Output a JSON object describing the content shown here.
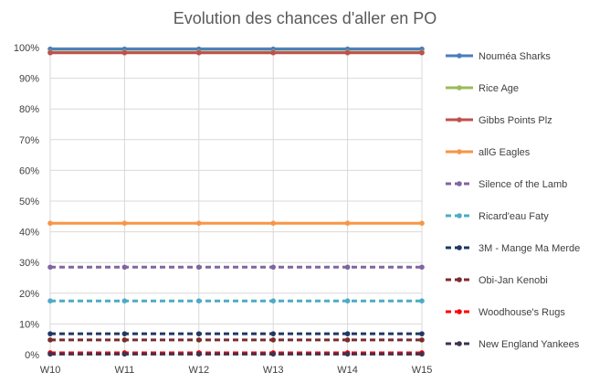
{
  "chart_data": {
    "type": "line",
    "title": "Evolution des chances d'aller en PO",
    "xlabel": "",
    "ylabel": "",
    "categories": [
      "W10",
      "W11",
      "W12",
      "W13",
      "W14",
      "W15"
    ],
    "ylim": [
      0,
      1
    ],
    "y_ticks": [
      "0%",
      "10%",
      "20%",
      "30%",
      "40%",
      "50%",
      "60%",
      "70%",
      "80%",
      "90%",
      "100%"
    ],
    "grid": true,
    "legend": "right",
    "series": [
      {
        "name": "Nouméa Sharks",
        "values": [
          0.995,
          0.995,
          0.995,
          0.995,
          0.995,
          0.995
        ],
        "color": "#4a7ebb",
        "dash": false
      },
      {
        "name": "Rice Age",
        "values": [
          0.985,
          0.985,
          0.985,
          0.985,
          0.985,
          0.985
        ],
        "color": "#9bbb59",
        "dash": false
      },
      {
        "name": "Gibbs Points Plz",
        "values": [
          0.983,
          0.983,
          0.983,
          0.983,
          0.983,
          0.983
        ],
        "color": "#c0504d",
        "dash": false
      },
      {
        "name": "allG Eagles",
        "values": [
          0.428,
          0.428,
          0.428,
          0.428,
          0.428,
          0.428
        ],
        "color": "#f79646",
        "dash": false
      },
      {
        "name": "Silence of the Lamb",
        "values": [
          0.285,
          0.285,
          0.285,
          0.285,
          0.285,
          0.285
        ],
        "color": "#8064a2",
        "dash": true
      },
      {
        "name": "Ricard'eau Faty",
        "values": [
          0.175,
          0.175,
          0.175,
          0.175,
          0.175,
          0.175
        ],
        "color": "#4bacc6",
        "dash": true
      },
      {
        "name": "3M - Mange Ma Merde",
        "values": [
          0.068,
          0.068,
          0.068,
          0.068,
          0.068,
          0.068
        ],
        "color": "#1f3864",
        "dash": true
      },
      {
        "name": "Obi-Jan Kenobi",
        "values": [
          0.048,
          0.048,
          0.048,
          0.048,
          0.048,
          0.048
        ],
        "color": "#7b2c2a",
        "dash": true
      },
      {
        "name": "Woodhouse's Rugs",
        "values": [
          0.006,
          0.006,
          0.006,
          0.006,
          0.006,
          0.006
        ],
        "color": "#ff0000",
        "dash": true
      },
      {
        "name": "New England Yankees",
        "values": [
          0.002,
          0.002,
          0.002,
          0.002,
          0.002,
          0.002
        ],
        "color": "#3f3151",
        "dash": true
      }
    ]
  }
}
